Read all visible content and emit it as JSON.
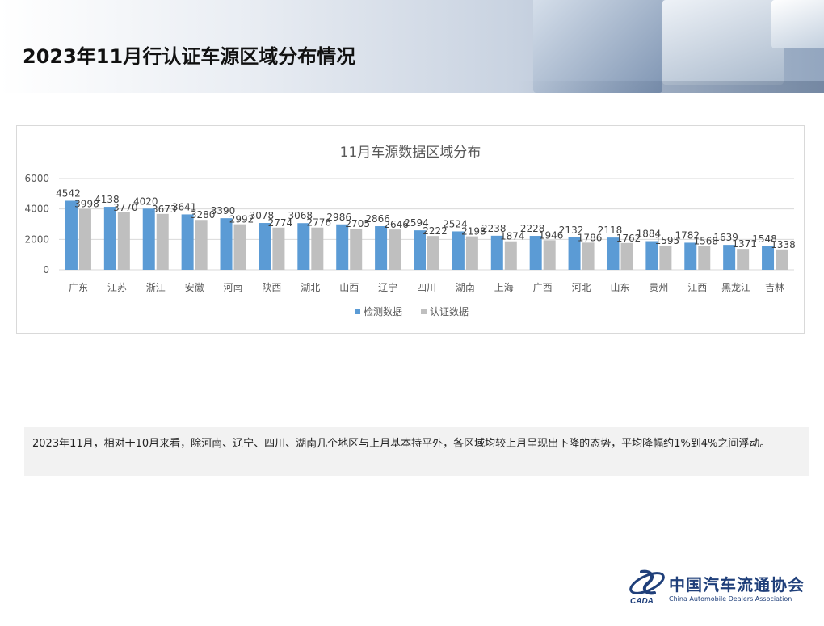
{
  "page": {
    "title": "2023年11月行认证车源区域分布情况",
    "note": "2023年11月，相对于10月来看，除河南、辽宁、四川、湖南几个地区与上月基本持平外，各区域均较上月呈现出下降的态势，平均降幅约1%到4%之间浮动。"
  },
  "logo": {
    "name_cn": "中国汽车流通协会",
    "name_en": "China Automobile Dealers Association",
    "mark_text": "CADA"
  },
  "colors": {
    "series_detect": "#5b9bd5",
    "series_cert": "#bfbfbf",
    "grid": "#d9d9d9",
    "text": "#595959"
  },
  "chart_data": {
    "type": "bar",
    "title": "11月车源数据区域分布",
    "categories": [
      "广东",
      "江苏",
      "浙江",
      "安徽",
      "河南",
      "陕西",
      "湖北",
      "山西",
      "辽宁",
      "四川",
      "湖南",
      "上海",
      "广西",
      "河北",
      "山东",
      "贵州",
      "江西",
      "黑龙江",
      "吉林"
    ],
    "series": [
      {
        "name": "检测数据",
        "values": [
          4542,
          4138,
          4020,
          3641,
          3390,
          3078,
          3068,
          2986,
          2866,
          2594,
          2524,
          2238,
          2228,
          2132,
          2118,
          1884,
          1782,
          1639,
          1548
        ]
      },
      {
        "name": "认证数据",
        "values": [
          3998,
          3770,
          3673,
          3280,
          2992,
          2774,
          2776,
          2705,
          2646,
          2222,
          2198,
          1874,
          1946,
          1786,
          1762,
          1595,
          1568,
          1371,
          1338
        ]
      }
    ],
    "y_ticks": [
      0,
      2000,
      4000,
      6000
    ],
    "ylim": [
      0,
      6000
    ],
    "grid": true,
    "legend_position": "bottom"
  }
}
